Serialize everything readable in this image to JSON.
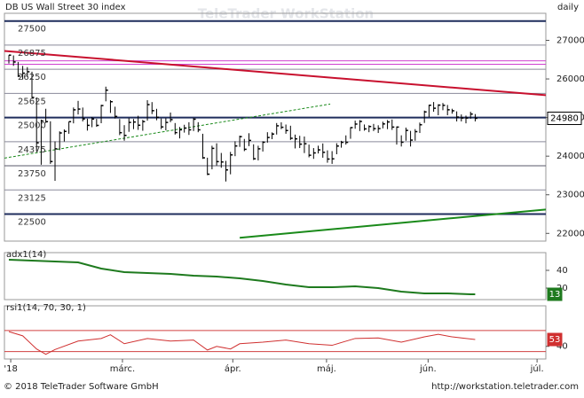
{
  "footer": {
    "copyright": "© 2018 TeleTrader Software GmbH",
    "url": "http://workstation.teletrader.com"
  },
  "chart_data": [
    {
      "type": "ohlc",
      "title": "DB US Wall Street 30 index",
      "period": "daily",
      "watermark": "TeleTrader WorkStation",
      "x": [
        0,
        1,
        2,
        3,
        4,
        5,
        6,
        7,
        8,
        9,
        10,
        11,
        12,
        13,
        14,
        15,
        16,
        17,
        18,
        19,
        20,
        21,
        22,
        23,
        24,
        25,
        26,
        27,
        28,
        29,
        30,
        31,
        32,
        33,
        34,
        35,
        36,
        37,
        38,
        39,
        40,
        41,
        42,
        43,
        44,
        45,
        46,
        47,
        48,
        49,
        50,
        51,
        52,
        53,
        54,
        55,
        56,
        57,
        58,
        59,
        60,
        61,
        62,
        63,
        64,
        65,
        66,
        67,
        68,
        69,
        70,
        71,
        72,
        73,
        74,
        75,
        76,
        77,
        78,
        79,
        80,
        81,
        82,
        83,
        84,
        85,
        86,
        87,
        88,
        89,
        90,
        91,
        92,
        93,
        94,
        95,
        96,
        97,
        98,
        99,
        100,
        101
      ],
      "high": [
        26617,
        26609,
        26440,
        26338,
        26306,
        26187,
        25520,
        24946,
        25227,
        24903,
        24382,
        24643,
        24693,
        24894,
        25260,
        25432,
        25259,
        24971,
        25012,
        24965,
        25330,
        25800,
        25449,
        25281,
        24962,
        24803,
        24985,
        24962,
        25046,
        24940,
        25449,
        25400,
        25226,
        24977,
        24983,
        25130,
        24858,
        24756,
        24813,
        24879,
        24990,
        24880,
        24580,
        23960,
        24270,
        24333,
        24083,
        23879,
        24110,
        24385,
        24531,
        24446,
        24594,
        24307,
        24270,
        24386,
        24620,
        24615,
        24858,
        24876,
        24819,
        24788,
        24558,
        24527,
        24509,
        24300,
        24210,
        24271,
        24329,
        24150,
        24130,
        24335,
        24397,
        24538,
        24750,
        24920,
        24934,
        24820,
        24800,
        24835,
        24800,
        24893,
        24935,
        24950,
        24770,
        24540,
        24740,
        24655,
        24700,
        24870,
        25180,
        25330,
        25402,
        25344,
        25377,
        25326,
        25228,
        25160,
        25080,
        25050,
        25150,
        25090
      ],
      "low": [
        26400,
        26339,
        26050,
        25990,
        26050,
        25510,
        24120,
        23778,
        24860,
        23800,
        23360,
        24155,
        24380,
        24580,
        24850,
        25080,
        24899,
        24662,
        24750,
        24759,
        24853,
        25420,
        25120,
        24975,
        24544,
        24400,
        24630,
        24700,
        24680,
        24657,
        24920,
        25090,
        24930,
        24700,
        24670,
        24880,
        24560,
        24460,
        24610,
        24550,
        24650,
        24620,
        23930,
        23509,
        23660,
        23760,
        23700,
        23344,
        23530,
        24000,
        24240,
        24130,
        24260,
        23900,
        23890,
        24120,
        24350,
        24440,
        24560,
        24700,
        24580,
        24420,
        24200,
        24210,
        24080,
        23970,
        23930,
        24070,
        23960,
        23830,
        23800,
        24050,
        24220,
        24300,
        24450,
        24710,
        24650,
        24660,
        24620,
        24650,
        24600,
        24720,
        24700,
        24680,
        24300,
        24250,
        24400,
        24250,
        24400,
        24600,
        24860,
        25010,
        25150,
        25060,
        25190,
        25060,
        25100,
        24900,
        24900,
        24850,
        24970,
        24900
      ],
      "close": [
        26616,
        26439,
        26076,
        26149,
        26186,
        25521,
        24346,
        24912,
        24893,
        23860,
        24190,
        24601,
        24641,
        24893,
        25200,
        25219,
        24964,
        24798,
        24962,
        24797,
        25310,
        25709,
        25410,
        25029,
        24608,
        24538,
        24874,
        24884,
        24801,
        24895,
        25335,
        25178,
        25007,
        24758,
        24873,
        24946,
        24610,
        24683,
        24727,
        24682,
        24957,
        24682,
        23957,
        23533,
        24202,
        23858,
        23849,
        23644,
        24033,
        24264,
        24505,
        24178,
        24408,
        23933,
        24190,
        24360,
        24483,
        24573,
        24786,
        24748,
        24664,
        24463,
        24448,
        24311,
        24322,
        24024,
        24084,
        24163,
        24099,
        23925,
        23931,
        24262,
        24358,
        24358,
        24739,
        24831,
        24899,
        24706,
        24768,
        24713,
        24715,
        24835,
        24886,
        24753,
        24753,
        24361,
        24667,
        24416,
        24635,
        24813,
        25146,
        25318,
        25241,
        25322,
        25316,
        25201,
        25175,
        25013,
        24988,
        24987,
        25090,
        24980
      ],
      "bar_color": "#000000",
      "xlim": [
        -0.96,
        116.3
      ],
      "ylim": [
        21800,
        27700
      ],
      "yticks": [
        22000,
        23000,
        24000,
        25000,
        26000,
        27000
      ],
      "levels": [
        {
          "value": 27500,
          "color": "#1f2d5c",
          "width": 2
        },
        {
          "value": 26875,
          "color": "#8a8a9a",
          "width": 1
        },
        {
          "value": 26250,
          "color": "#8a8a9a",
          "width": 1
        },
        {
          "value": 25625,
          "color": "#8a8a9a",
          "width": 1
        },
        {
          "value": 25000,
          "color": "#1f2d5c",
          "width": 2
        },
        {
          "value": 24375,
          "color": "#8a8a9a",
          "width": 1
        },
        {
          "value": 23750,
          "color": "#5a5a6a",
          "width": 1
        },
        {
          "value": 23125,
          "color": "#8a8a9a",
          "width": 1
        },
        {
          "value": 22500,
          "color": "#1f2d5c",
          "width": 2
        }
      ],
      "lines": [
        {
          "x": [
            -0.96,
            116.3
          ],
          "y": [
            26470,
            26470
          ],
          "color": "#d040d0",
          "width": 1
        },
        {
          "x": [
            -0.96,
            116.3
          ],
          "y": [
            26380,
            26380
          ],
          "color": "#d040d0",
          "width": 1
        },
        {
          "x": [
            -0.96,
            116.3
          ],
          "y": [
            26725,
            25578
          ],
          "color": "#c8102e",
          "width": 2
        },
        {
          "x": [
            50,
            116.3
          ],
          "y": [
            21885,
            22619
          ],
          "color": "#1a8a1a",
          "width": 2
        },
        {
          "x": [
            -0.96,
            69.6
          ],
          "y": [
            23950,
            25350
          ],
          "color": "#1a8a1a",
          "width": 1,
          "dash": true
        }
      ],
      "last": 24980,
      "last_color": "#000000"
    },
    {
      "type": "line",
      "label": "adx1(14)",
      "x": [
        0,
        5,
        10,
        15,
        20,
        25,
        30,
        35,
        40,
        45,
        50,
        55,
        60,
        65,
        70,
        75,
        80,
        85,
        90,
        95,
        100,
        101
      ],
      "series": [
        {
          "color": "#1e7a1e",
          "values": [
            52,
            51,
            50,
            49,
            42,
            38,
            37,
            36,
            34,
            33,
            31,
            28,
            24,
            21,
            21,
            22,
            20,
            16,
            14,
            14,
            13,
            13
          ]
        }
      ],
      "xlim": [
        -0.96,
        116.3
      ],
      "ylim": [
        7,
        60
      ],
      "yticks": [
        20,
        40
      ],
      "last": 13,
      "last_color": "#1e7a1e"
    },
    {
      "type": "line",
      "label": "rsi1(14, 70, 30, 1)",
      "x": [
        0,
        3,
        6,
        8,
        10,
        15,
        20,
        22,
        25,
        30,
        35,
        40,
        43,
        45,
        48,
        50,
        55,
        60,
        65,
        70,
        75,
        80,
        85,
        90,
        93,
        96,
        101
      ],
      "series": [
        {
          "color": "#d03030",
          "values": [
            68,
            60,
            35,
            25,
            34,
            50,
            55,
            62,
            45,
            55,
            50,
            52,
            33,
            40,
            35,
            45,
            48,
            52,
            45,
            42,
            55,
            56,
            48,
            58,
            63,
            58,
            53
          ]
        }
      ],
      "hlines": [
        70,
        30
      ],
      "hline_color": "#d04040",
      "xlim": [
        -0.96,
        116.3
      ],
      "ylim": [
        16,
        117
      ],
      "yticks": [
        40
      ],
      "last": 53,
      "last_color": "#d03030",
      "xticks": [
        {
          "value": 0.4,
          "label": "'18"
        },
        {
          "value": 24.6,
          "label": "márc."
        },
        {
          "value": 48.5,
          "label": "ápr."
        },
        {
          "value": 68.8,
          "label": "máj."
        },
        {
          "value": 90.8,
          "label": "jún."
        },
        {
          "value": 114.4,
          "label": "júl."
        }
      ]
    }
  ]
}
